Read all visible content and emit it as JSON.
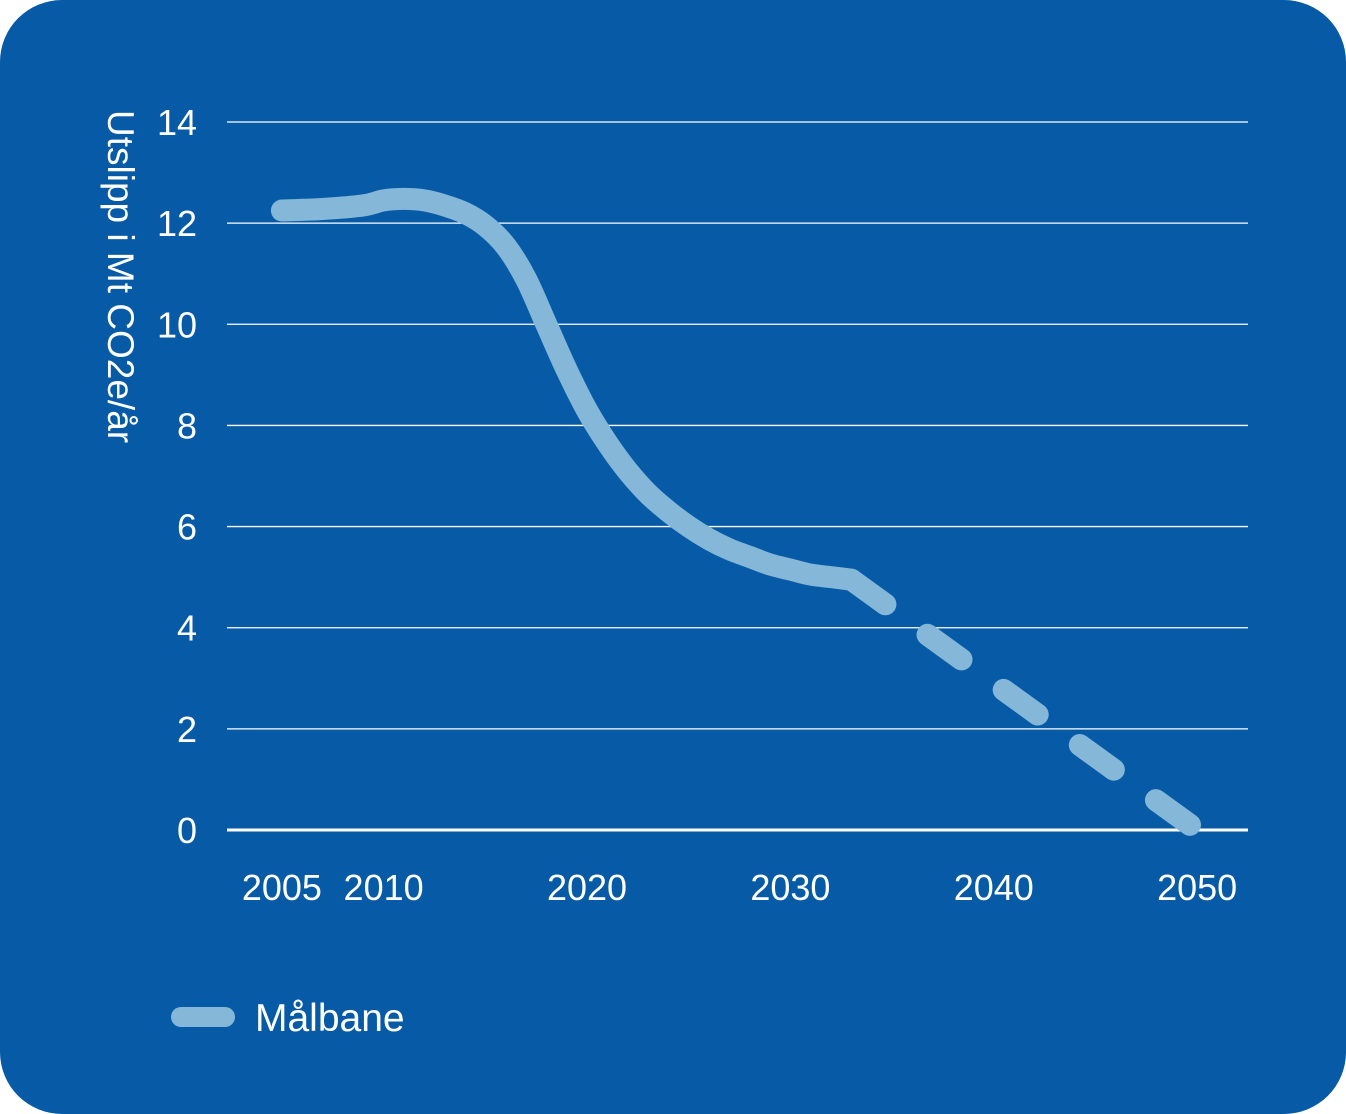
{
  "chart_data": {
    "type": "line",
    "title": "",
    "xlabel": "",
    "ylabel": "Utslipp i Mt CO2e/år",
    "ylim": [
      0,
      14
    ],
    "yticks": [
      0,
      2,
      4,
      6,
      8,
      10,
      12,
      14
    ],
    "xlim": [
      2002.3,
      2052.5
    ],
    "xticks": [
      2005,
      2010,
      2020,
      2030,
      2040,
      2050
    ],
    "grid": true,
    "legend": "bottom-left",
    "series": [
      {
        "name": "Målbane",
        "color": "#84b7d8",
        "style": "solid",
        "x": [
          2005,
          2007,
          2009,
          2010,
          2011,
          2012,
          2013,
          2014,
          2015,
          2016,
          2017,
          2018,
          2019,
          2020,
          2021,
          2022,
          2023,
          2024,
          2025,
          2026,
          2027,
          2028,
          2029,
          2030,
          2031,
          2032,
          2033
        ],
        "values": [
          12.25,
          12.28,
          12.35,
          12.45,
          12.48,
          12.45,
          12.35,
          12.2,
          11.95,
          11.55,
          10.9,
          10.0,
          9.1,
          8.3,
          7.65,
          7.1,
          6.65,
          6.3,
          6.0,
          5.75,
          5.55,
          5.4,
          5.25,
          5.15,
          5.05,
          5.0,
          4.95
        ]
      },
      {
        "name": "Målbane",
        "color": "#84b7d8",
        "style": "dashed",
        "x": [
          2033,
          2050
        ],
        "values": [
          4.95,
          0
        ]
      }
    ]
  }
}
